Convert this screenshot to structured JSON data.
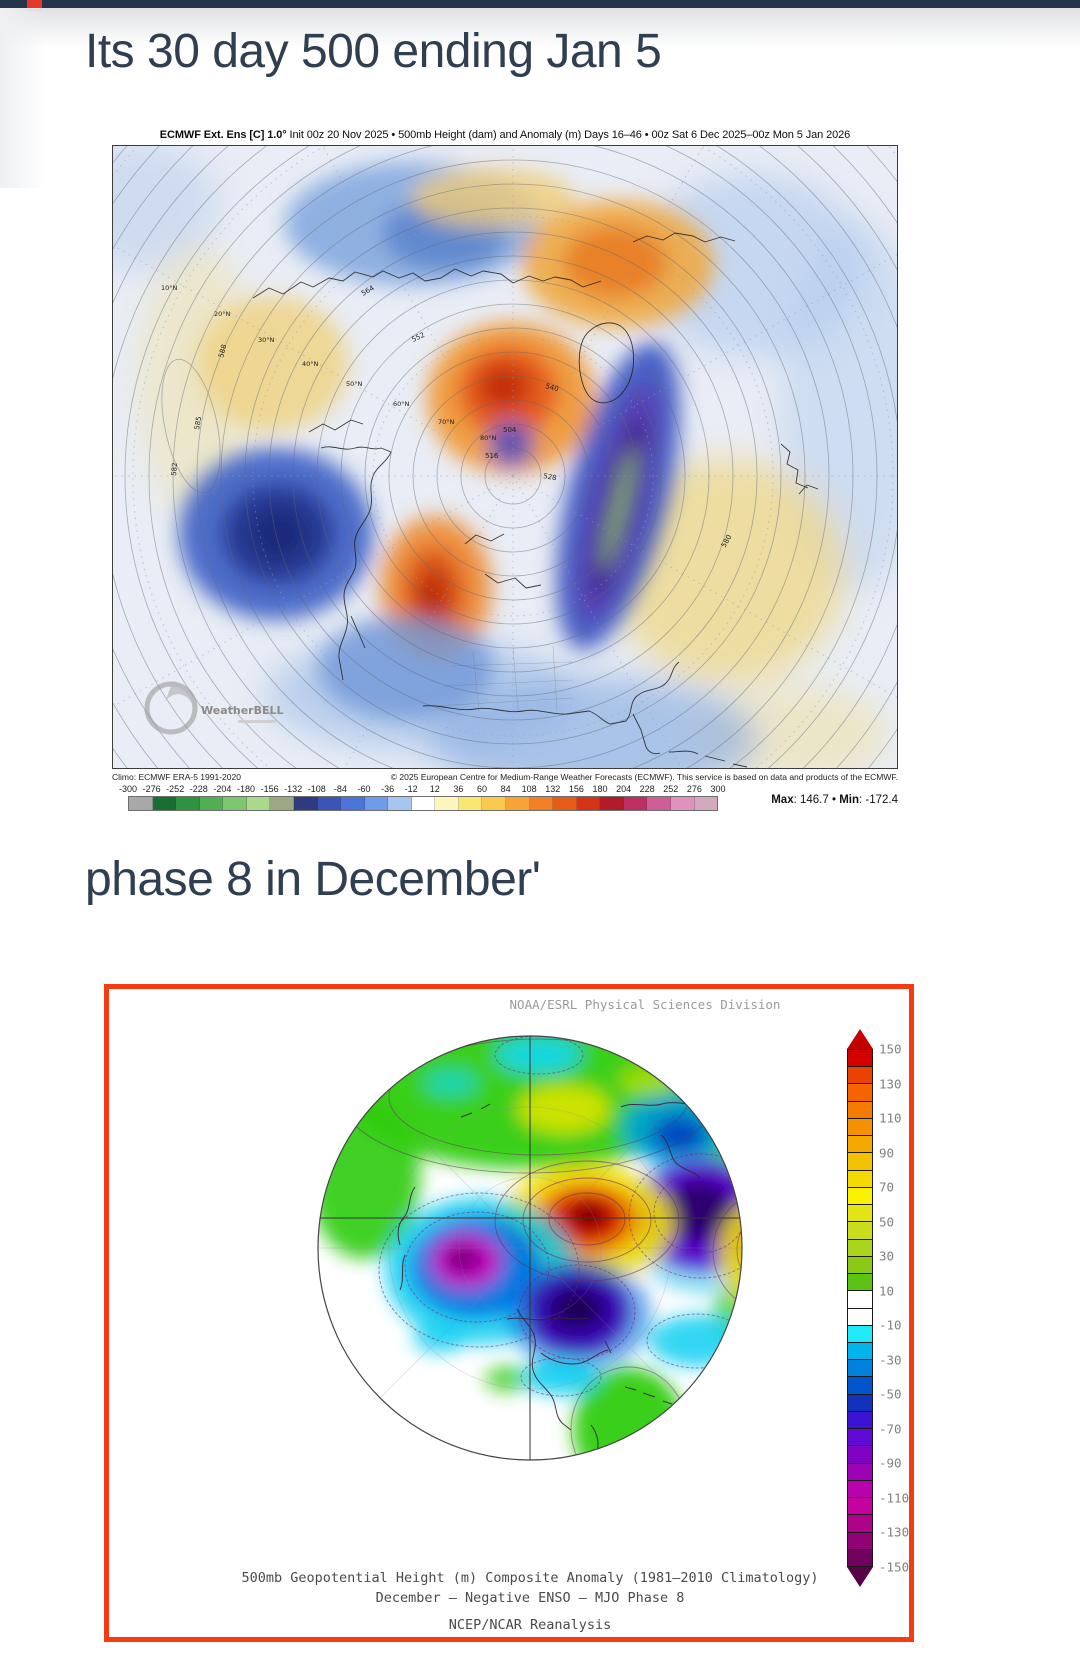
{
  "page": {
    "heading1": "Its 30 day 500 ending Jan 5",
    "heading2": "phase 8 in December'"
  },
  "ecmwf": {
    "title_bold": "ECMWF Ext. Ens [C] 1.0°",
    "title_rest": " Init 00z 20 Nov 2025 • 500mb Height (dam) and Anomaly (m) Days 16–46 • 00z Sat 6 Dec 2025–00z Mon 5 Jan 2026",
    "climo_note": "Climo: ECMWF ERA-5 1991-2020",
    "copyright_note": "© 2025 European Centre for Medium-Range Weather Forecasts (ECMWF). This service is based on data and products of the ECMWF.",
    "stats": {
      "max_label": "Max",
      "max_value": ": 146.7",
      "separator": " • ",
      "min_label": "Min",
      "min_value": ": -172.4"
    },
    "logo_text": "WeatherBELL",
    "lat_labels": [
      "10°N",
      "20°N",
      "30°N",
      "40°N",
      "50°N",
      "60°N",
      "70°N",
      "80°N"
    ],
    "contour_labels": [
      "588",
      "585",
      "582",
      "564",
      "552",
      "540",
      "528",
      "516",
      "504",
      "580"
    ],
    "colorbar": {
      "labels": [
        "-300",
        "-276",
        "-252",
        "-228",
        "-204",
        "-180",
        "-156",
        "-132",
        "-108",
        "-84",
        "-60",
        "-36",
        "-12",
        "12",
        "36",
        "60",
        "84",
        "108",
        "132",
        "156",
        "180",
        "204",
        "228",
        "252",
        "276",
        "300"
      ],
      "colors": [
        "#a8a8a8",
        "#1b6e31",
        "#2f9242",
        "#52ae53",
        "#7fc671",
        "#abd98c",
        "#9aa884",
        "#2e3c7e",
        "#3a55b4",
        "#4a74d8",
        "#6f9ce8",
        "#a6c6f0",
        "#ffffff",
        "#fdf6bc",
        "#fbe671",
        "#fbc94e",
        "#f7a437",
        "#f28024",
        "#e85a17",
        "#d43417",
        "#b21c28",
        "#bc2f62",
        "#cf5d97",
        "#e092bf",
        "#d2a9bd"
      ]
    }
  },
  "noaa": {
    "header": "NOAA/ESRL Physical Sciences Division",
    "caption1": "500mb Geopotential Height (m) Composite Anomaly (1981–2010 Climatology)",
    "caption2": "December – Negative ENSO – MJO Phase 8",
    "caption3": "NCEP/NCAR Reanalysis",
    "colorbar": {
      "tick_labels": [
        "150",
        "130",
        "110",
        "90",
        "70",
        "50",
        "30",
        "10",
        "-10",
        "-30",
        "-50",
        "-70",
        "-90",
        "-110",
        "-130",
        "-150"
      ],
      "colors": [
        "#d40000",
        "#ea4200",
        "#f56400",
        "#f57a00",
        "#f59000",
        "#f5a800",
        "#f2c200",
        "#f4da00",
        "#f9f100",
        "#e2e414",
        "#cadc1c",
        "#abd41c",
        "#8cc916",
        "#5cc312",
        "#ffffff",
        "#ffffff",
        "#22e9f8",
        "#00b5ec",
        "#0081dc",
        "#0055cc",
        "#1232bc",
        "#3c12d5",
        "#6109d5",
        "#8102c5",
        "#9d02b5",
        "#b902ad",
        "#c5029d",
        "#ad0289",
        "#930275",
        "#70025d"
      ]
    }
  }
}
